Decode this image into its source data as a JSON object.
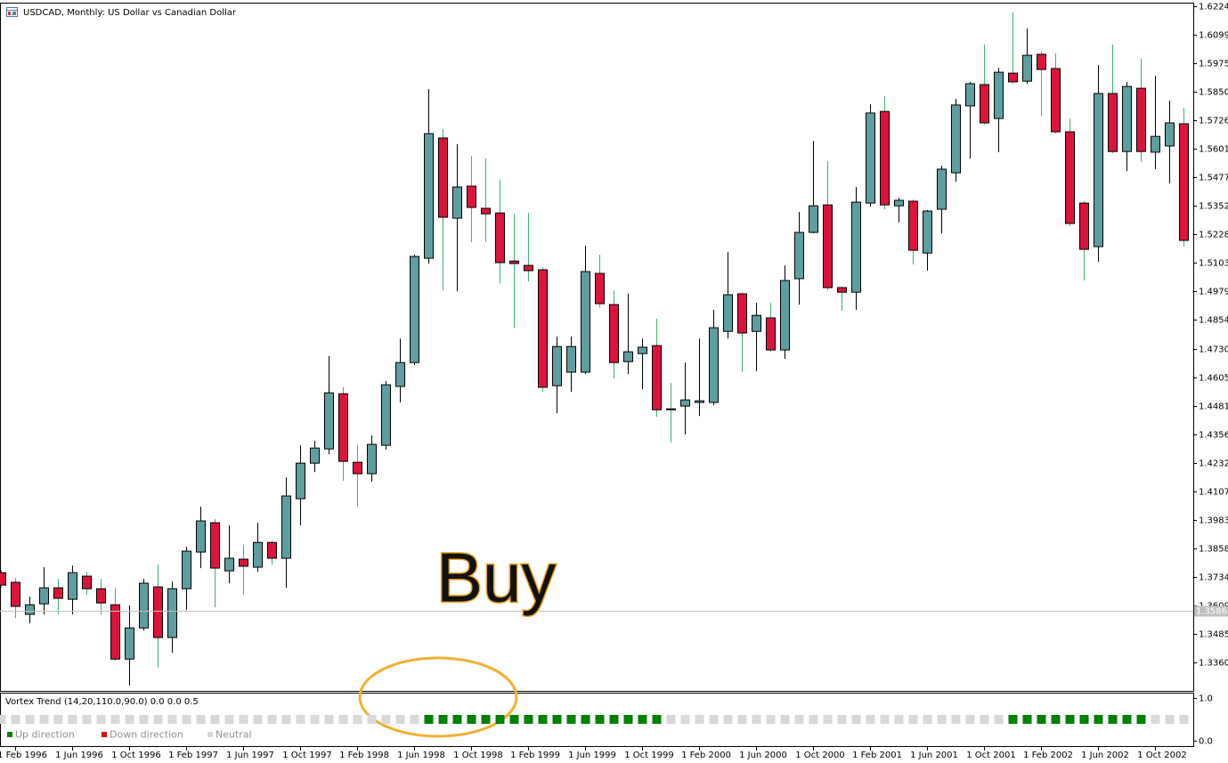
{
  "chart_data": [
    {
      "type": "candlestick",
      "title": "USDCAD, Monthly:  US Dollar vs Canadian Dollar",
      "categories": [
        null,
        "1 Feb 1996",
        null,
        null,
        null,
        "1 Jun 1996",
        null,
        null,
        null,
        "1 Oct 1996",
        null,
        null,
        null,
        "1 Feb 1997",
        null,
        null,
        null,
        "1 Jun 1997",
        null,
        null,
        null,
        "1 Oct 1997",
        null,
        null,
        null,
        "1 Feb 1998",
        null,
        null,
        null,
        "1 Jun 1998",
        null,
        null,
        null,
        "1 Oct 1998",
        null,
        null,
        null,
        "1 Feb 1999",
        null,
        null,
        null,
        "1 Jun 1999",
        null,
        null,
        null,
        "1 Oct 1999",
        null,
        null,
        null,
        "1 Feb 2000",
        null,
        null,
        null,
        "1 Jun 2000",
        null,
        null,
        null,
        "1 Oct 2000",
        null,
        null,
        null,
        "1 Feb 2001",
        null,
        null,
        null,
        "1 Jun 2001",
        null,
        null,
        null,
        "1 Oct 2001",
        null,
        null,
        null,
        "1 Feb 2002",
        null,
        null,
        null,
        "1 Jun 2002",
        null,
        null,
        null,
        "1 Oct 2002",
        null,
        null
      ],
      "open": [
        1.3752,
        1.371,
        1.357,
        1.3616,
        1.3686,
        1.3636,
        1.3737,
        1.3682,
        1.3612,
        1.3375,
        1.3511,
        1.369,
        1.3469,
        1.3682,
        1.3842,
        1.397,
        1.376,
        1.3811,
        1.3776,
        1.3884,
        1.3815,
        1.4075,
        1.423,
        1.4292,
        1.4533,
        1.4234,
        1.4184,
        1.4308,
        1.4565,
        1.4669,
        1.5124,
        1.5649,
        1.5299,
        1.5439,
        1.5342,
        1.5322,
        1.5112,
        1.5093,
        1.5074,
        1.4568,
        1.4627,
        1.4627,
        1.5058,
        1.4922,
        1.4673,
        1.4708,
        1.4743,
        1.4467,
        1.4479,
        1.4495,
        1.4495,
        1.4805,
        1.4969,
        1.4805,
        1.4864,
        1.4724,
        1.5035,
        1.5237,
        1.5357,
        1.4996,
        1.4976,
        1.5365,
        1.5765,
        1.5353,
        1.5373,
        1.5147,
        1.5338,
        1.5497,
        1.5789,
        1.5882,
        1.5734,
        1.5932,
        1.5897,
        1.6014,
        1.5952,
        1.5676,
        1.5365,
        1.5175,
        1.5843,
        1.559,
        1.5866,
        1.5587,
        1.5614,
        1.5711
      ],
      "high": [
        1.3764,
        1.3729,
        1.3647,
        1.3776,
        1.3725,
        1.3783,
        1.3756,
        1.3725,
        1.3686,
        1.3609,
        1.3725,
        1.3787,
        1.3713,
        1.3865,
        1.404,
        1.3986,
        1.3958,
        1.3873,
        1.397,
        1.3892,
        1.4168,
        1.4308,
        1.4327,
        1.4697,
        1.4561,
        1.4308,
        1.4351,
        1.4588,
        1.4774,
        1.514,
        1.5862,
        1.5688,
        1.5622,
        1.5571,
        1.5559,
        1.5466,
        1.5318,
        1.5322,
        1.5085,
        1.4782,
        1.4782,
        1.5179,
        1.514,
        1.4984,
        1.4969,
        1.4774,
        1.486,
        1.458,
        1.4669,
        1.4774,
        1.4899,
        1.5151,
        1.4976,
        1.493,
        1.493,
        1.5093,
        1.5326,
        1.5637,
        1.5548,
        1.5,
        1.5435,
        1.5796,
        1.5831,
        1.5388,
        1.538,
        1.5334,
        1.5528,
        1.582,
        1.5894,
        1.6057,
        1.5956,
        1.6197,
        1.6127,
        1.6026,
        1.6018,
        1.5734,
        1.5373,
        1.5967,
        1.6057,
        1.5894,
        1.5995,
        1.5921,
        1.5812,
        1.5781
      ],
      "low": [
        1.3686,
        1.3554,
        1.3531,
        1.357,
        1.357,
        1.357,
        1.3655,
        1.357,
        1.3368,
        1.3259,
        1.35,
        1.3337,
        1.3403,
        1.3589,
        1.3772,
        1.3601,
        1.3706,
        1.3655,
        1.3756,
        1.3787,
        1.3686,
        1.3958,
        1.4191,
        1.4269,
        1.4153,
        1.404,
        1.4149,
        1.4289,
        1.4495,
        1.4658,
        1.5101,
        1.4984,
        1.498,
        1.5194,
        1.5194,
        1.5015,
        1.4821,
        1.5023,
        1.4541,
        1.4448,
        1.4541,
        1.4619,
        1.491,
        1.4599,
        1.4619,
        1.4553,
        1.4432,
        1.432,
        1.4355,
        1.4436,
        1.4483,
        1.4774,
        1.4627,
        1.4631,
        1.4716,
        1.4685,
        1.4922,
        1.5233,
        1.4984,
        1.4895,
        1.4899,
        1.5349,
        1.5338,
        1.528,
        1.5097,
        1.507,
        1.5233,
        1.5458,
        1.5559,
        1.5707,
        1.5587,
        1.5886,
        1.5886,
        1.5746,
        1.5668,
        1.5264,
        1.5027,
        1.5109,
        1.5583,
        1.5505,
        1.5544,
        1.5513,
        1.5451,
        1.5175
      ],
      "close": [
        1.3698,
        1.3605,
        1.3612,
        1.3686,
        1.364,
        1.3752,
        1.3682,
        1.362,
        1.3375,
        1.3511,
        1.3706,
        1.3469,
        1.3682,
        1.3846,
        1.3978,
        1.3772,
        1.3815,
        1.378,
        1.3884,
        1.3815,
        1.4087,
        1.423,
        1.4296,
        1.4537,
        1.4238,
        1.4184,
        1.4312,
        1.4572,
        1.4669,
        1.5132,
        1.5668,
        1.5303,
        1.5435,
        1.5346,
        1.5318,
        1.5105,
        1.5101,
        1.507,
        1.4561,
        1.4739,
        1.4739,
        1.5066,
        1.4926,
        1.4669,
        1.4716,
        1.4736,
        1.4463,
        1.4463,
        1.4506,
        1.4502,
        1.4821,
        1.4965,
        1.4798,
        1.4875,
        1.4724,
        1.5027,
        1.5237,
        1.5353,
        1.4996,
        1.4976,
        1.5369,
        1.5758,
        1.5357,
        1.5377,
        1.5159,
        1.533,
        1.5513,
        1.5793,
        1.5886,
        1.5715,
        1.5936,
        1.5894,
        1.601,
        1.5948,
        1.5676,
        1.5276,
        1.5163,
        1.5843,
        1.559,
        1.5874,
        1.559,
        1.5656,
        1.5715,
        1.5202
      ],
      "up_color": "#5f9ea0",
      "down_color": "#dc143c",
      "wick_up_color": "#000000",
      "wick_down_color": "#3cb371",
      "ylim": [
        1.32362,
        1.62395
      ],
      "yticks": [
        {
          "value": 1.6224,
          "label": "1.62240"
        },
        1.60995,
        {
          "value": 1.5975,
          "label": "1.59750"
        },
        1.58505,
        {
          "value": 1.5726,
          "label": "1.57260"
        },
        1.56015,
        {
          "value": 1.5477,
          "label": "1.54770"
        },
        1.53525,
        {
          "value": 1.5228,
          "label": "1.52280"
        },
        1.51035,
        {
          "value": 1.4979,
          "label": "1.49790"
        },
        1.48545,
        {
          "value": 1.473,
          "label": "1.47300"
        },
        1.46055,
        {
          "value": 1.4481,
          "label": "1.44810"
        },
        1.43565,
        {
          "value": 1.4232,
          "label": "1.42320"
        },
        1.41075,
        {
          "value": 1.3983,
          "label": "1.39830"
        },
        1.38585,
        {
          "value": 1.3734,
          "label": "1.37340"
        },
        1.36095,
        {
          "value": 1.3485,
          "label": "1.34850"
        },
        1.33605
      ],
      "current_price": 1.35861,
      "annotation": "Buy"
    },
    {
      "type": "dots",
      "title": "Vortex Trend (14,20,110.0,90.0) 0.0 0.0 0.5",
      "series": [
        {
          "name": "Up direction",
          "color": "#008000",
          "values": [
            null,
            null,
            null,
            null,
            null,
            null,
            null,
            null,
            null,
            null,
            null,
            null,
            null,
            null,
            null,
            null,
            null,
            null,
            null,
            null,
            null,
            null,
            null,
            null,
            null,
            null,
            null,
            null,
            null,
            null,
            0.5,
            0.5,
            0.5,
            0.5,
            0.5,
            0.5,
            0.5,
            0.5,
            0.5,
            0.5,
            0.5,
            0.5,
            0.5,
            0.5,
            0.5,
            0.5,
            0.5,
            null,
            null,
            null,
            null,
            null,
            null,
            null,
            null,
            null,
            null,
            null,
            null,
            null,
            null,
            null,
            null,
            null,
            null,
            null,
            null,
            null,
            null,
            null,
            null,
            0.5,
            0.5,
            0.5,
            0.5,
            0.5,
            0.5,
            0.5,
            0.5,
            0.5,
            0.5,
            null,
            null,
            null
          ]
        },
        {
          "name": "Down direction",
          "color": "#e00000",
          "values": [
            null,
            null,
            null,
            null,
            null,
            null,
            null,
            null,
            null,
            null,
            null,
            null,
            null,
            null,
            null,
            null,
            null,
            null,
            null,
            null,
            null,
            null,
            null,
            null,
            null,
            null,
            null,
            null,
            null,
            null,
            null,
            null,
            null,
            null,
            null,
            null,
            null,
            null,
            null,
            null,
            null,
            null,
            null,
            null,
            null,
            null,
            null,
            null,
            null,
            null,
            null,
            null,
            null,
            null,
            null,
            null,
            null,
            null,
            null,
            null,
            null,
            null,
            null,
            null,
            null,
            null,
            null,
            null,
            null,
            null,
            null,
            null,
            null,
            null,
            null,
            null,
            null,
            null,
            null,
            null,
            null,
            null,
            null,
            null
          ]
        },
        {
          "name": "Neutral",
          "color": "#d9d9d9",
          "values": [
            0.5,
            0.5,
            0.5,
            0.5,
            0.5,
            0.5,
            0.5,
            0.5,
            0.5,
            0.5,
            0.5,
            0.5,
            0.5,
            0.5,
            0.5,
            0.5,
            0.5,
            0.5,
            0.5,
            0.5,
            0.5,
            0.5,
            0.5,
            0.5,
            0.5,
            0.5,
            0.5,
            0.5,
            0.5,
            0.5,
            null,
            null,
            null,
            null,
            null,
            null,
            null,
            null,
            null,
            null,
            null,
            null,
            null,
            null,
            null,
            null,
            null,
            0.5,
            0.5,
            0.5,
            0.5,
            0.5,
            0.5,
            0.5,
            0.5,
            0.5,
            0.5,
            0.5,
            0.5,
            0.5,
            0.5,
            0.5,
            0.5,
            0.5,
            0.5,
            0.5,
            0.5,
            0.5,
            0.5,
            0.5,
            0.5,
            null,
            null,
            null,
            null,
            null,
            null,
            null,
            null,
            null,
            null,
            0.5,
            0.5,
            0.5
          ]
        }
      ],
      "ylim": [
        -0.125,
        1.104
      ],
      "yticks": [
        {
          "value": 1,
          "label": "1.0"
        },
        {
          "value": 0,
          "label": "0.0"
        }
      ]
    }
  ]
}
